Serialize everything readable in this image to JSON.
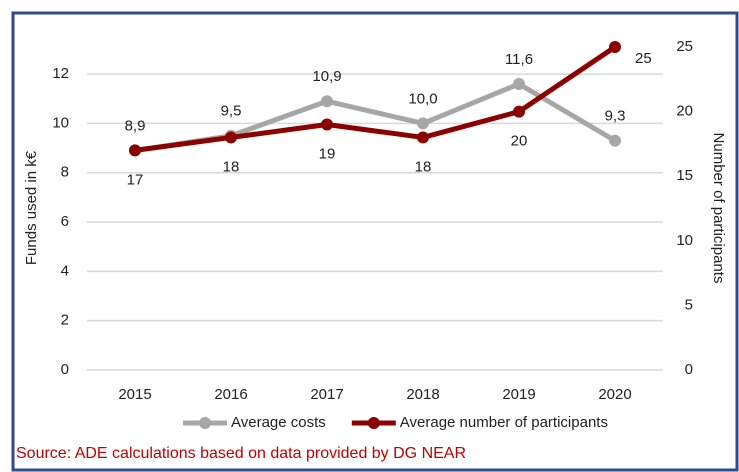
{
  "chart_data": {
    "type": "line",
    "categories": [
      "2015",
      "2016",
      "2017",
      "2018",
      "2019",
      "2020"
    ],
    "series": [
      {
        "name": "Average costs",
        "color": "#a6a6a6",
        "axis": "y",
        "values": [
          8.9,
          9.5,
          10.9,
          10.0,
          11.6,
          9.3
        ],
        "value_labels": [
          "8,9",
          "9,5",
          "10,9",
          "10,0",
          "11,6",
          "9,3"
        ]
      },
      {
        "name": "Average number of participants",
        "color": "#8b0000",
        "axis": "y2",
        "values": [
          17,
          18,
          19,
          18,
          20,
          25
        ]
      }
    ],
    "ylabel": "Funds used in k€",
    "y2label": "Number of participants",
    "ylim": [
      0,
      13.1
    ],
    "yticks": [
      0,
      2,
      4,
      6,
      8,
      10,
      12
    ],
    "y2lim": [
      0,
      25
    ],
    "y2ticks": [
      0,
      5,
      10,
      15,
      20,
      25
    ],
    "grid": true,
    "legend": "bottom",
    "source": "Source: ADE calculations based on data provided by DG NEAR"
  }
}
